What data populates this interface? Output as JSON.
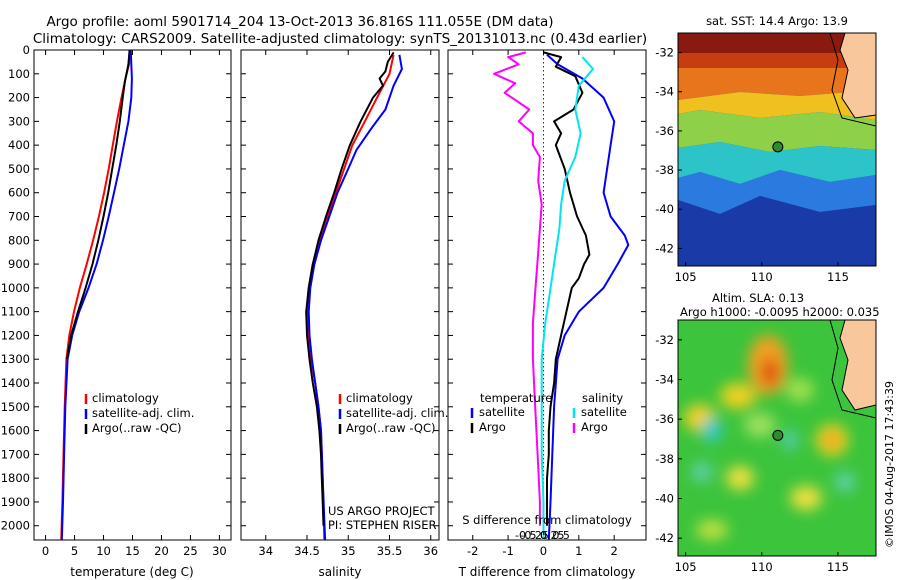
{
  "header": {
    "line1": "Argo profile: aoml 5901714_204 13-Oct-2013 36.816S 111.055E (DM data)",
    "line2": "Climatology: CARS2009. Satellite-adjusted climatology: synTS_20131013.nc (0.43d earlier)"
  },
  "chart_data": [
    {
      "type": "line",
      "name": "temperature-profile",
      "xlabel": "temperature (deg C)",
      "ylabel": "",
      "xlim": [
        -2,
        32
      ],
      "ylim": [
        2060,
        0
      ],
      "xticks": [
        0,
        5,
        10,
        15,
        20,
        25,
        30
      ],
      "yticks": [
        0,
        100,
        200,
        300,
        400,
        500,
        600,
        700,
        800,
        900,
        1000,
        1100,
        1200,
        1300,
        1400,
        1500,
        1600,
        1700,
        1800,
        1900,
        2000
      ],
      "legend": [
        "climatology",
        "satellite-adj. clim.",
        "Argo(..raw -QC)"
      ],
      "series": [
        {
          "name": "climatology",
          "color": "#ff0000",
          "points": [
            [
              14.6,
              0
            ],
            [
              14.4,
              60
            ],
            [
              13.8,
              120
            ],
            [
              13.1,
              200
            ],
            [
              12.3,
              300
            ],
            [
              11.6,
              400
            ],
            [
              10.9,
              500
            ],
            [
              10.1,
              600
            ],
            [
              9.2,
              700
            ],
            [
              8.2,
              800
            ],
            [
              7.1,
              900
            ],
            [
              5.9,
              1000
            ],
            [
              4.9,
              1100
            ],
            [
              4.1,
              1200
            ],
            [
              3.6,
              1300
            ],
            [
              3.3,
              1500
            ],
            [
              3.1,
              1700
            ],
            [
              2.9,
              1900
            ],
            [
              2.7,
              2060
            ]
          ]
        },
        {
          "name": "satellite-adj. clim.",
          "color": "#0000ff",
          "points": [
            [
              14.7,
              0
            ],
            [
              14.8,
              60
            ],
            [
              14.9,
              120
            ],
            [
              14.8,
              200
            ],
            [
              14.3,
              300
            ],
            [
              13.5,
              400
            ],
            [
              12.7,
              500
            ],
            [
              11.8,
              600
            ],
            [
              10.9,
              700
            ],
            [
              9.9,
              800
            ],
            [
              8.8,
              900
            ],
            [
              7.4,
              1000
            ],
            [
              5.8,
              1100
            ],
            [
              4.6,
              1200
            ],
            [
              3.8,
              1300
            ],
            [
              3.4,
              1500
            ],
            [
              3.2,
              1700
            ],
            [
              3.0,
              1900
            ],
            [
              2.8,
              2060
            ]
          ]
        },
        {
          "name": "Argo(..raw -QC)",
          "color": "#000000",
          "points": [
            [
              14.5,
              0
            ],
            [
              14.3,
              60
            ],
            [
              13.7,
              130
            ],
            [
              13.3,
              200
            ],
            [
              12.8,
              300
            ],
            [
              12.2,
              400
            ],
            [
              11.5,
              500
            ],
            [
              10.8,
              600
            ],
            [
              10.0,
              700
            ],
            [
              9.1,
              800
            ],
            [
              8.1,
              900
            ],
            [
              6.9,
              1000
            ],
            [
              5.6,
              1100
            ],
            [
              4.4,
              1200
            ],
            [
              3.7,
              1300
            ]
          ]
        }
      ]
    },
    {
      "type": "line",
      "name": "salinity-profile",
      "xlabel": "salinity",
      "ylabel": "",
      "xlim": [
        33.7,
        36.1
      ],
      "ylim": [
        2060,
        0
      ],
      "xticks": [
        34,
        34.5,
        35,
        35.5,
        36
      ],
      "xticklabels": [
        "34",
        "34.5",
        "35",
        "35.5",
        "36"
      ],
      "legend": [
        "climatology",
        "satellite-adj. clim.",
        "Argo(..raw -QC)"
      ],
      "annotation": [
        "US ARGO PROJECT",
        "PI: STEPHEN RISER"
      ],
      "series": [
        {
          "name": "climatology",
          "color": "#ff0000",
          "points": [
            [
              35.55,
              20
            ],
            [
              35.5,
              100
            ],
            [
              35.35,
              200
            ],
            [
              35.2,
              300
            ],
            [
              35.05,
              400
            ],
            [
              34.95,
              500
            ],
            [
              34.85,
              600
            ],
            [
              34.75,
              700
            ],
            [
              34.65,
              800
            ],
            [
              34.57,
              900
            ],
            [
              34.52,
              1000
            ],
            [
              34.5,
              1100
            ],
            [
              34.52,
              1200
            ],
            [
              34.55,
              1300
            ],
            [
              34.6,
              1400
            ],
            [
              34.64,
              1500
            ],
            [
              34.67,
              1600
            ],
            [
              34.69,
              1800
            ],
            [
              34.71,
              2060
            ]
          ]
        },
        {
          "name": "satellite-adj. clim.",
          "color": "#0000ff",
          "points": [
            [
              35.62,
              20
            ],
            [
              35.65,
              80
            ],
            [
              35.55,
              150
            ],
            [
              35.45,
              250
            ],
            [
              35.28,
              330
            ],
            [
              35.1,
              420
            ],
            [
              35.0,
              500
            ],
            [
              34.87,
              600
            ],
            [
              34.77,
              700
            ],
            [
              34.67,
              800
            ],
            [
              34.59,
              900
            ],
            [
              34.54,
              1000
            ],
            [
              34.52,
              1100
            ],
            [
              34.53,
              1200
            ],
            [
              34.56,
              1300
            ],
            [
              34.6,
              1400
            ],
            [
              34.64,
              1500
            ],
            [
              34.67,
              1600
            ],
            [
              34.69,
              1800
            ],
            [
              34.72,
              2060
            ]
          ]
        },
        {
          "name": "Argo(..raw -QC)",
          "color": "#000000",
          "points": [
            [
              35.55,
              10
            ],
            [
              35.48,
              50
            ],
            [
              35.45,
              90
            ],
            [
              35.38,
              120
            ],
            [
              35.42,
              150
            ],
            [
              35.3,
              200
            ],
            [
              35.15,
              300
            ],
            [
              35.02,
              400
            ],
            [
              34.92,
              500
            ],
            [
              34.83,
              600
            ],
            [
              34.73,
              700
            ],
            [
              34.64,
              800
            ],
            [
              34.57,
              900
            ],
            [
              34.52,
              1000
            ],
            [
              34.49,
              1100
            ],
            [
              34.5,
              1200
            ],
            [
              34.53,
              1300
            ],
            [
              34.57,
              1400
            ],
            [
              34.62,
              1500
            ],
            [
              34.65,
              1600
            ],
            [
              34.67,
              1700
            ],
            [
              34.68,
              1800
            ],
            [
              34.69,
              1900
            ],
            [
              34.7,
              2000
            ]
          ]
        }
      ]
    },
    {
      "type": "line",
      "name": "difference-profile",
      "xlabel": "T difference from climatology",
      "xlabel_top": "S difference from climatology",
      "xlim": [
        -2.7,
        2.9
      ],
      "ylim": [
        2060,
        0
      ],
      "xticks": [
        -2,
        -1,
        0,
        1,
        2
      ],
      "s_ticks": [
        -0.5,
        -0.25,
        0,
        0.25,
        0.5
      ],
      "s_ticklabels": [
        "-0.5",
        "-0.25",
        "0",
        "0.25",
        "0.5"
      ],
      "legend_temperature_title": "temperature",
      "legend_salinity_title": "salinity",
      "legend": [
        "satellite",
        "Argo",
        "satellite",
        "Argo"
      ],
      "series": [
        {
          "name": "T satellite",
          "color": "#0000ff",
          "points": [
            [
              0.1,
              20
            ],
            [
              0.4,
              60
            ],
            [
              1.1,
              120
            ],
            [
              1.7,
              200
            ],
            [
              2.0,
              300
            ],
            [
              1.9,
              400
            ],
            [
              1.8,
              500
            ],
            [
              1.7,
              600
            ],
            [
              1.9,
              700
            ],
            [
              2.3,
              780
            ],
            [
              2.4,
              820
            ],
            [
              2.1,
              900
            ],
            [
              1.7,
              1000
            ],
            [
              1.0,
              1100
            ],
            [
              0.6,
              1200
            ],
            [
              0.4,
              1300
            ],
            [
              0.3,
              1500
            ],
            [
              0.25,
              1700
            ],
            [
              0.2,
              1900
            ],
            [
              0.15,
              2060
            ]
          ]
        },
        {
          "name": "T Argo",
          "color": "#000000",
          "points": [
            [
              0.0,
              10
            ],
            [
              0.5,
              30
            ],
            [
              0.35,
              70
            ],
            [
              0.9,
              110
            ],
            [
              1.1,
              180
            ],
            [
              0.85,
              250
            ],
            [
              0.3,
              300
            ],
            [
              0.5,
              350
            ],
            [
              0.35,
              400
            ],
            [
              0.6,
              500
            ],
            [
              0.75,
              600
            ],
            [
              0.95,
              700
            ],
            [
              1.2,
              780
            ],
            [
              1.3,
              860
            ],
            [
              1.15,
              900
            ],
            [
              1.0,
              960
            ],
            [
              0.8,
              1000
            ],
            [
              0.65,
              1100
            ],
            [
              0.5,
              1200
            ],
            [
              0.35,
              1300
            ],
            [
              0.3,
              1400
            ],
            [
              0.2,
              1500
            ],
            [
              0.15,
              1600
            ],
            [
              0.15,
              1700
            ],
            [
              0.1,
              1800
            ],
            [
              0.1,
              1900
            ],
            [
              0.1,
              2000
            ]
          ]
        },
        {
          "name": "S satellite",
          "color": "#00e5ee",
          "points": [
            [
              1.1,
              30
            ],
            [
              1.4,
              80
            ],
            [
              1.0,
              150
            ],
            [
              0.9,
              250
            ],
            [
              1.05,
              350
            ],
            [
              0.9,
              450
            ],
            [
              0.6,
              550
            ],
            [
              0.5,
              650
            ],
            [
              0.45,
              750
            ],
            [
              0.35,
              850
            ],
            [
              0.25,
              950
            ],
            [
              0.15,
              1050
            ],
            [
              0.05,
              1150
            ],
            [
              -0.05,
              1300
            ],
            [
              -0.05,
              1500
            ],
            [
              -0.05,
              1700
            ],
            [
              0.0,
              1900
            ],
            [
              0.0,
              2060
            ]
          ]
        },
        {
          "name": "S Argo",
          "color": "#ff00ff",
          "points": [
            [
              -0.5,
              10
            ],
            [
              -1.0,
              30
            ],
            [
              -0.7,
              60
            ],
            [
              -1.4,
              100
            ],
            [
              -0.8,
              140
            ],
            [
              -1.1,
              180
            ],
            [
              -0.4,
              250
            ],
            [
              -0.7,
              300
            ],
            [
              -0.3,
              350
            ],
            [
              -0.3,
              400
            ],
            [
              -0.1,
              450
            ],
            [
              -0.15,
              550
            ],
            [
              -0.05,
              650
            ],
            [
              -0.1,
              750
            ],
            [
              -0.15,
              850
            ],
            [
              -0.2,
              950
            ],
            [
              -0.25,
              1050
            ],
            [
              -0.3,
              1150
            ],
            [
              -0.3,
              1300
            ],
            [
              -0.25,
              1450
            ],
            [
              -0.2,
              1600
            ],
            [
              -0.15,
              1750
            ],
            [
              -0.1,
              1900
            ],
            [
              -0.1,
              2000
            ]
          ]
        }
      ]
    },
    {
      "type": "heatmap",
      "name": "sst-map",
      "title": "sat. SST: 14.4  Argo: 13.9",
      "xlim": [
        104.5,
        117.5
      ],
      "ylim": [
        -42.9,
        -31.0
      ],
      "xticks": [
        105,
        110,
        115
      ],
      "yticks": [
        -32,
        -34,
        -36,
        -38,
        -40,
        -42
      ],
      "argo_location": {
        "lon": 111.055,
        "lat": -36.816
      }
    },
    {
      "type": "heatmap",
      "name": "sla-map",
      "title_line1": "Altim. SLA: 0.13",
      "title_line2": "Argo h1000: -0.0095  h2000: 0.035",
      "xlim": [
        104.5,
        117.5
      ],
      "ylim": [
        -42.9,
        -31.0
      ],
      "xticks": [
        105,
        110,
        115
      ],
      "yticks": [
        -32,
        -34,
        -36,
        -38,
        -40,
        -42
      ],
      "argo_location": {
        "lon": 111.055,
        "lat": -36.816
      }
    }
  ],
  "credit": "©IMOS 04-Aug-2017 17:43:39"
}
